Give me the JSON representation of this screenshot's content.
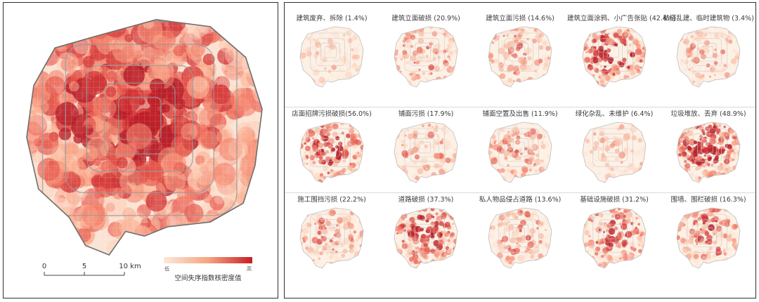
{
  "overview_map": {
    "scale_bar": {
      "ticks": [
        "0",
        "5",
        "10 km"
      ]
    },
    "legend": {
      "low_label": "低",
      "high_label": "高",
      "title": "空间失序指数核密度值"
    },
    "colors": {
      "low": "#fde8d8",
      "mid": "#f4a582",
      "high": "#c81d25",
      "ring_roads": "#9a9a9a",
      "boundary": "#6e6e6e"
    }
  },
  "small_multiples": [
    {
      "label": "建筑废弃、拆除 (1.4%)",
      "intensity": 0.08
    },
    {
      "label": "建筑立面破损 (20.9%)",
      "intensity": 0.45
    },
    {
      "label": "建筑立面污损 (14.6%)",
      "intensity": 0.4
    },
    {
      "label": "建筑立面涂鸦、小广告张贴 (42.4%)",
      "intensity": 0.85
    },
    {
      "label": "私搭乱建、临时建筑物 (3.4%)",
      "intensity": 0.3
    },
    {
      "label": "店面招牌污损破损(56.0%)",
      "intensity": 0.8
    },
    {
      "label": "铺面污损 (17.9%)",
      "intensity": 0.35
    },
    {
      "label": "铺面空置及出售 (11.9%)",
      "intensity": 0.42
    },
    {
      "label": "绿化杂乱、未维护 (6.4%)",
      "intensity": 0.15
    },
    {
      "label": "垃圾堆放、丢弃 (48.9%)",
      "intensity": 0.9
    },
    {
      "label": "施工围挡污损 (22.2%)",
      "intensity": 0.45
    },
    {
      "label": "道路破损 (37.3%)",
      "intensity": 0.75
    },
    {
      "label": "私人物品侵占道路 (13.6%)",
      "intensity": 0.4
    },
    {
      "label": "基础设施破损 (31.2%)",
      "intensity": 0.65
    },
    {
      "label": "围墙、围栏破损 (16.3%)",
      "intensity": 0.6
    }
  ]
}
